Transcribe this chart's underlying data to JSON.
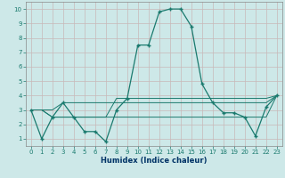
{
  "x": [
    0,
    1,
    2,
    3,
    4,
    5,
    6,
    7,
    8,
    9,
    10,
    11,
    12,
    13,
    14,
    15,
    16,
    17,
    18,
    19,
    20,
    21,
    22,
    23
  ],
  "y_main": [
    3,
    1,
    2.5,
    3.5,
    2.5,
    1.5,
    1.5,
    0.8,
    3,
    3.8,
    7.5,
    7.5,
    9.8,
    10,
    10,
    8.8,
    4.8,
    3.5,
    2.8,
    2.8,
    2.5,
    1.2,
    3.2,
    4
  ],
  "y_line1": [
    3,
    3,
    3,
    3.5,
    3.5,
    3.5,
    3.5,
    3.5,
    3.5,
    3.5,
    3.5,
    3.5,
    3.5,
    3.5,
    3.5,
    3.5,
    3.5,
    3.5,
    3.5,
    3.5,
    3.5,
    3.5,
    3.5,
    4
  ],
  "y_line2": [
    3,
    3,
    2.5,
    2.5,
    2.5,
    2.5,
    2.5,
    2.5,
    2.5,
    2.5,
    2.5,
    2.5,
    2.5,
    2.5,
    2.5,
    2.5,
    2.5,
    2.5,
    2.5,
    2.5,
    2.5,
    2.5,
    2.5,
    4
  ],
  "y_line3": [
    3,
    3,
    2.5,
    2.5,
    2.5,
    2.5,
    2.5,
    2.5,
    3.8,
    3.8,
    3.8,
    3.8,
    3.8,
    3.8,
    3.8,
    3.8,
    3.8,
    3.8,
    3.8,
    3.8,
    3.8,
    3.8,
    3.8,
    4
  ],
  "line_color": "#1a7a6e",
  "bg_color": "#cde8e8",
  "grid_color": "#c8b8b8",
  "xlabel": "Humidex (Indice chaleur)",
  "ylim": [
    0.5,
    10.5
  ],
  "xlim": [
    -0.5,
    23.5
  ],
  "yticks": [
    1,
    2,
    3,
    4,
    5,
    6,
    7,
    8,
    9,
    10
  ],
  "xticks": [
    0,
    1,
    2,
    3,
    4,
    5,
    6,
    7,
    8,
    9,
    10,
    11,
    12,
    13,
    14,
    15,
    16,
    17,
    18,
    19,
    20,
    21,
    22,
    23
  ]
}
